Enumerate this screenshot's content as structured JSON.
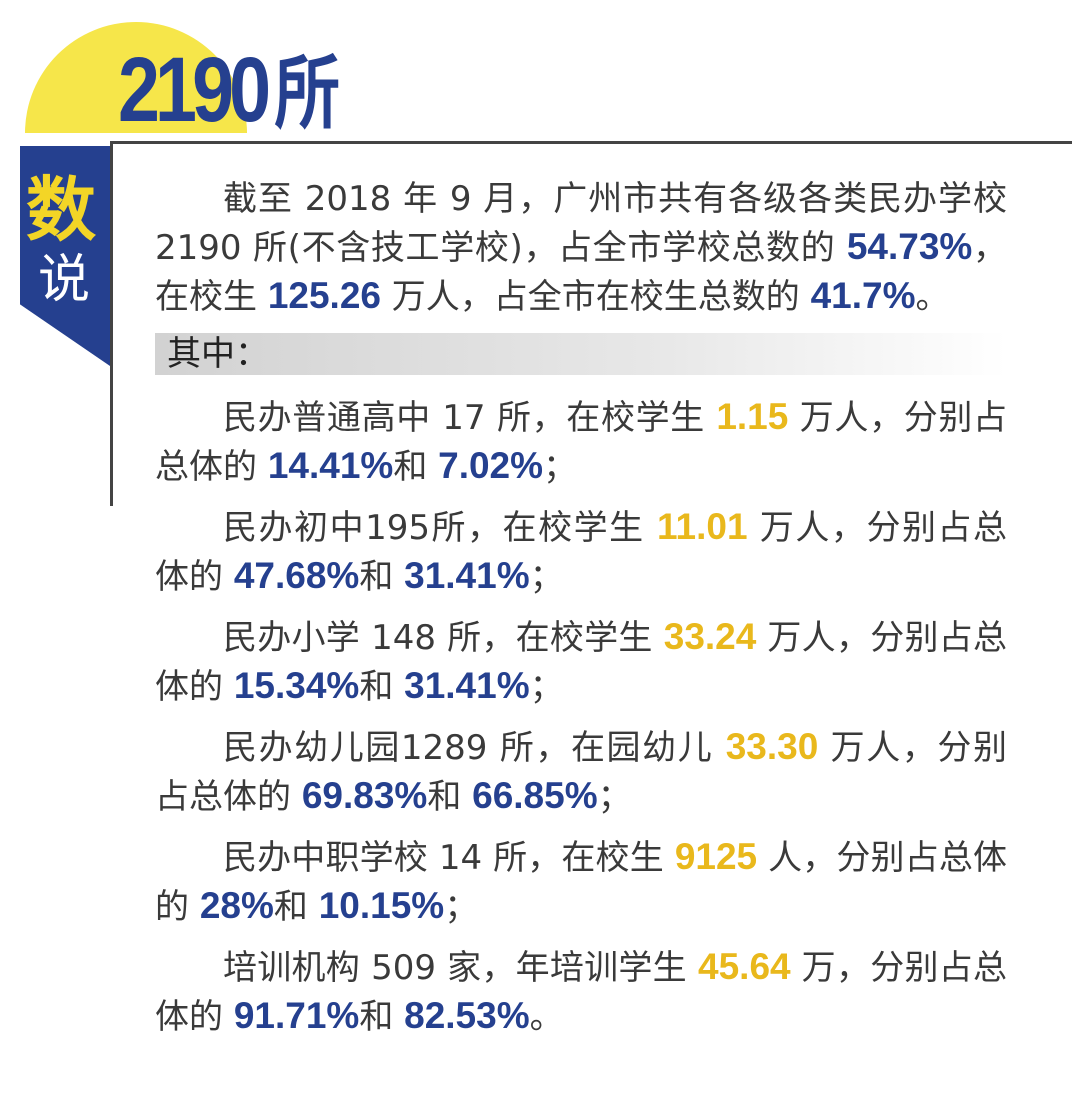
{
  "header": {
    "number": "2190",
    "unit": "所"
  },
  "ribbon": {
    "line1": "数",
    "line2": "说"
  },
  "colors": {
    "blue": "#25408f",
    "yellow": "#e9b81c",
    "sun": "#f6e64a"
  },
  "intro": [
    {
      "t": "截至 2018 年 9 月，广州市共有各级各类民办学校 2190 所(不含技工学校)，占全市学校总数的 ",
      "c": "n"
    },
    {
      "t": "54.73%",
      "c": "b"
    },
    {
      "t": "，在校生 ",
      "c": "n"
    },
    {
      "t": "125.26",
      "c": "b"
    },
    {
      "t": " 万人，占全市在校生总数的 ",
      "c": "n"
    },
    {
      "t": "41.7%",
      "c": "b"
    },
    {
      "t": "。",
      "c": "n"
    }
  ],
  "section_label": "其中：",
  "items": [
    [
      {
        "t": "民办普通高中 17 所，在校学生 ",
        "c": "n"
      },
      {
        "t": "1.15",
        "c": "y"
      },
      {
        "t": " 万人，分别占总体的 ",
        "c": "n"
      },
      {
        "t": "14.41%",
        "c": "b"
      },
      {
        "t": "和 ",
        "c": "n"
      },
      {
        "t": "7.02%",
        "c": "b"
      },
      {
        "t": "；",
        "c": "n"
      }
    ],
    [
      {
        "t": "民办初中195所，在校学生 ",
        "c": "n"
      },
      {
        "t": "11.01",
        "c": "y"
      },
      {
        "t": " 万人，分别占总体的 ",
        "c": "n"
      },
      {
        "t": "47.68%",
        "c": "b"
      },
      {
        "t": "和 ",
        "c": "n"
      },
      {
        "t": "31.41%",
        "c": "b"
      },
      {
        "t": "；",
        "c": "n"
      }
    ],
    [
      {
        "t": "民办小学 148 所，在校学生 ",
        "c": "n"
      },
      {
        "t": "33.24",
        "c": "y"
      },
      {
        "t": " 万人，分别占总体的 ",
        "c": "n"
      },
      {
        "t": "15.34%",
        "c": "b"
      },
      {
        "t": "和 ",
        "c": "n"
      },
      {
        "t": "31.41%",
        "c": "b"
      },
      {
        "t": "；",
        "c": "n"
      }
    ],
    [
      {
        "t": "民办幼儿园1289 所，在园幼儿 ",
        "c": "n"
      },
      {
        "t": "33.30",
        "c": "y"
      },
      {
        "t": " 万人，分别占总体的 ",
        "c": "n"
      },
      {
        "t": "69.83%",
        "c": "b"
      },
      {
        "t": "和 ",
        "c": "n"
      },
      {
        "t": "66.85%",
        "c": "b"
      },
      {
        "t": "；",
        "c": "n"
      }
    ],
    [
      {
        "t": "民办中职学校 14 所，在校生 ",
        "c": "n"
      },
      {
        "t": "9125",
        "c": "y"
      },
      {
        "t": " 人，分别占总体的 ",
        "c": "n"
      },
      {
        "t": "28%",
        "c": "b"
      },
      {
        "t": "和 ",
        "c": "n"
      },
      {
        "t": "10.15%",
        "c": "b"
      },
      {
        "t": "；",
        "c": "n"
      }
    ],
    [
      {
        "t": "培训机构 509 家，年培训学生 ",
        "c": "n"
      },
      {
        "t": "45.64",
        "c": "y"
      },
      {
        "t": " 万，分别占总体的 ",
        "c": "n"
      },
      {
        "t": "91.71%",
        "c": "b"
      },
      {
        "t": "和 ",
        "c": "n"
      },
      {
        "t": "82.53%",
        "c": "b"
      },
      {
        "t": "。",
        "c": "n"
      }
    ]
  ]
}
